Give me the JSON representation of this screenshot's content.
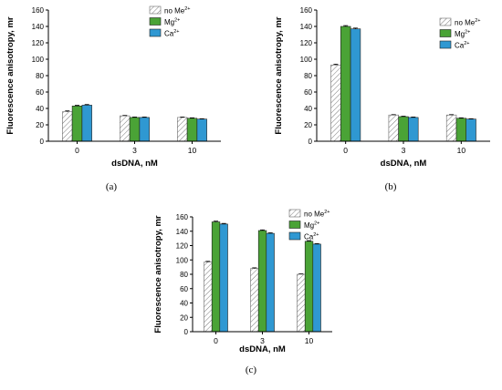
{
  "chart_data": [
    {
      "type": "bar",
      "caption": "(a)",
      "categories": [
        "0",
        "3",
        "10"
      ],
      "xlabel": "dsDNA, nM",
      "ylabel": "Fluorescence anisotropy, mr",
      "ylim": [
        0,
        160
      ],
      "yticks": [
        "0",
        "20",
        "40",
        "60",
        "80",
        "100",
        "120",
        "140",
        "160"
      ],
      "legend_position": "top-right",
      "series": [
        {
          "name": "no Me",
          "sup": "2+",
          "values": [
            36,
            31,
            29
          ],
          "errors": [
            1,
            0.5,
            0.5
          ]
        },
        {
          "name": "Mg",
          "sup": "2+",
          "values": [
            43,
            29,
            28
          ],
          "errors": [
            0.8,
            0.5,
            0.5
          ]
        },
        {
          "name": "Ca",
          "sup": "2+",
          "values": [
            44,
            29,
            27
          ],
          "errors": [
            0.8,
            0.5,
            0.5
          ]
        }
      ]
    },
    {
      "type": "bar",
      "caption": "(b)",
      "categories": [
        "0",
        "3",
        "10"
      ],
      "xlabel": "dsDNA, nM",
      "ylabel": "Fluorescence anisotropy, mr",
      "ylim": [
        0,
        160
      ],
      "yticks": [
        "0",
        "20",
        "40",
        "60",
        "80",
        "100",
        "120",
        "140",
        "160"
      ],
      "legend_position": "top-right",
      "series": [
        {
          "name": "no Me",
          "sup": "2+",
          "values": [
            93,
            32,
            32
          ],
          "errors": [
            1,
            0.5,
            0.5
          ]
        },
        {
          "name": "Mg",
          "sup": "2+",
          "values": [
            140,
            30,
            28
          ],
          "errors": [
            1,
            0.5,
            0.5
          ]
        },
        {
          "name": "Ca",
          "sup": "2+",
          "values": [
            137,
            29,
            27
          ],
          "errors": [
            1,
            0.5,
            0.5
          ]
        }
      ]
    },
    {
      "type": "bar",
      "caption": "(c)",
      "categories": [
        "0",
        "3",
        "10"
      ],
      "xlabel": "dsDNA, nM",
      "ylabel": "Fluorescence anisotropy, mr",
      "ylim": [
        0,
        160
      ],
      "yticks": [
        "0",
        "20",
        "40",
        "60",
        "80",
        "100",
        "120",
        "140",
        "160"
      ],
      "legend_position": "top-right",
      "series": [
        {
          "name": "no Me",
          "sup": "2+",
          "values": [
            97,
            88,
            80
          ],
          "errors": [
            1,
            1,
            0.5
          ]
        },
        {
          "name": "Mg",
          "sup": "2+",
          "values": [
            153,
            141,
            126
          ],
          "errors": [
            1,
            0.8,
            0.8
          ]
        },
        {
          "name": "Ca",
          "sup": "2+",
          "values": [
            150,
            137,
            122
          ],
          "errors": [
            0.8,
            0.8,
            0.8
          ]
        }
      ]
    }
  ],
  "colors": {
    "mg": "#4aa336",
    "ca": "#2f98d2",
    "hatch": "#888888",
    "axis": "#000000"
  }
}
